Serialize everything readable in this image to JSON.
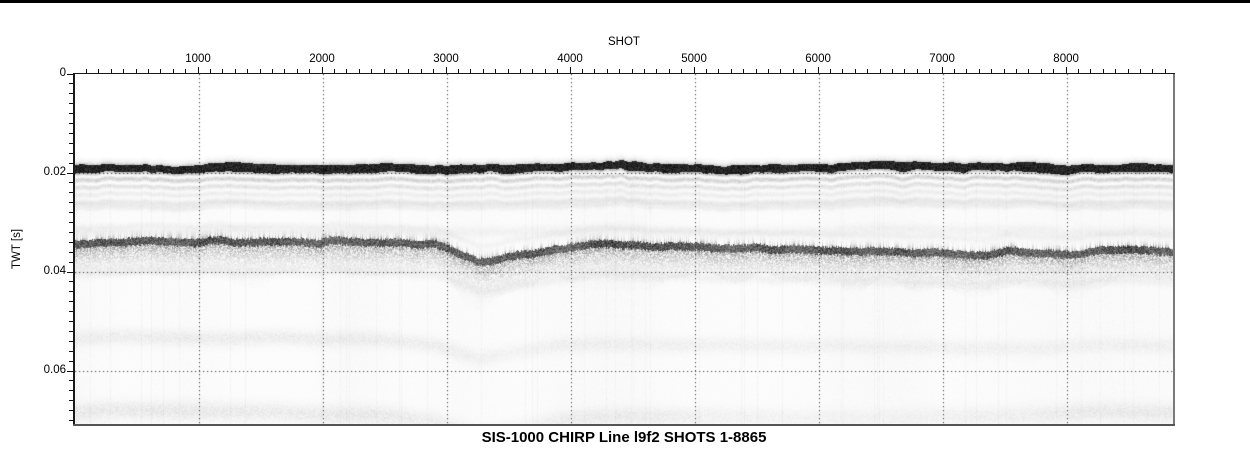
{
  "figure": {
    "kind": "seismic reflection profile plot",
    "top_border": true
  },
  "chart_data": {
    "type": "heatmap",
    "subtype": "seismic_chirp_reflection_profile",
    "title": "SIS-1000 CHIRP Line l9f2 SHOTS 1-8865",
    "xlabel": "SHOT",
    "ylabel": "TWT [s]",
    "xlim": [
      0,
      8870
    ],
    "ylim": [
      0,
      0.0707
    ],
    "y_inverted": true,
    "x_major_ticks": [
      1000,
      2000,
      3000,
      4000,
      5000,
      6000,
      7000,
      8000
    ],
    "x_minor_step": 100,
    "y_major_ticks": [
      0,
      0.02,
      0.04,
      0.06
    ],
    "y_major_tick_labels": [
      "0",
      "0.02",
      "0.04",
      "0.06"
    ],
    "y_minor_step": 0.002,
    "grid": {
      "style": "dotted",
      "color": "#4a4a4a",
      "vertical_at_shots": [
        1000,
        2000,
        3000,
        4000,
        5000,
        6000,
        7000,
        8000
      ],
      "horizontal_at_twt": [
        0.02,
        0.04,
        0.06
      ]
    },
    "palette": {
      "background": "#ffffff",
      "signal": "#000000",
      "axis": "#1a1a1a",
      "right_bottom_border": "#777777"
    },
    "horizons": [
      {
        "name": "seafloor",
        "amplitude": "strong",
        "description": "near-black continuous reflector with fuzzy top edge and ringing reverberation tail below",
        "reverberation_offsets_s": [
          0.0073,
          0.0128
        ],
        "points": [
          [
            0,
            0.0191
          ],
          [
            400,
            0.0189
          ],
          [
            800,
            0.0192
          ],
          [
            1200,
            0.0187
          ],
          [
            1600,
            0.019
          ],
          [
            2000,
            0.0192
          ],
          [
            2400,
            0.0188
          ],
          [
            2800,
            0.019
          ],
          [
            3200,
            0.0193
          ],
          [
            3600,
            0.0191
          ],
          [
            4000,
            0.0187
          ],
          [
            4400,
            0.0184
          ],
          [
            4800,
            0.0189
          ],
          [
            5200,
            0.0191
          ],
          [
            5600,
            0.0189
          ],
          [
            6000,
            0.019
          ],
          [
            6400,
            0.0186
          ],
          [
            6800,
            0.0183
          ],
          [
            7200,
            0.0189
          ],
          [
            7600,
            0.0186
          ],
          [
            8000,
            0.0191
          ],
          [
            8400,
            0.0189
          ],
          [
            8865,
            0.019
          ]
        ]
      },
      {
        "name": "sub-bottom-reflector",
        "amplitude": "strong",
        "description": "spiky dark reflector with speckled tail; dips near shot 3250, shallows at bumps near shots 7500 and 8400",
        "precursor_offset_s": -0.0024,
        "ringing_offset_s": 0.0068,
        "points": [
          [
            0,
            0.0336
          ],
          [
            300,
            0.0332
          ],
          [
            600,
            0.033
          ],
          [
            900,
            0.0332
          ],
          [
            1200,
            0.033
          ],
          [
            1500,
            0.0329
          ],
          [
            1800,
            0.0333
          ],
          [
            2100,
            0.0331
          ],
          [
            2400,
            0.0334
          ],
          [
            2700,
            0.0332
          ],
          [
            2900,
            0.0337
          ],
          [
            3050,
            0.0348
          ],
          [
            3250,
            0.0373
          ],
          [
            3450,
            0.0363
          ],
          [
            3650,
            0.0354
          ],
          [
            3850,
            0.0346
          ],
          [
            4050,
            0.0338
          ],
          [
            4250,
            0.0336
          ],
          [
            4500,
            0.034
          ],
          [
            4800,
            0.0341
          ],
          [
            5100,
            0.0343
          ],
          [
            5400,
            0.0346
          ],
          [
            5700,
            0.0344
          ],
          [
            6000,
            0.0346
          ],
          [
            6300,
            0.0349
          ],
          [
            6600,
            0.0351
          ],
          [
            6900,
            0.0354
          ],
          [
            7150,
            0.0357
          ],
          [
            7350,
            0.0356
          ],
          [
            7500,
            0.0349
          ],
          [
            7700,
            0.0353
          ],
          [
            7900,
            0.0358
          ],
          [
            8100,
            0.0356
          ],
          [
            8300,
            0.0349
          ],
          [
            8500,
            0.0346
          ],
          [
            8700,
            0.0351
          ],
          [
            8865,
            0.0353
          ]
        ]
      },
      {
        "name": "deep-multiple-band-1",
        "amplitude": "faint",
        "description": "patchy light-gray band, mirrors sub-bottom dip near shot 3250",
        "points": [
          [
            0,
            0.0533
          ],
          [
            600,
            0.053
          ],
          [
            1200,
            0.0535
          ],
          [
            1800,
            0.0532
          ],
          [
            2400,
            0.0536
          ],
          [
            2900,
            0.0545
          ],
          [
            3250,
            0.0575
          ],
          [
            3600,
            0.056
          ],
          [
            3900,
            0.0548
          ],
          [
            4200,
            0.0545
          ],
          [
            4800,
            0.0545
          ],
          [
            5400,
            0.0548
          ],
          [
            6000,
            0.0548
          ],
          [
            6600,
            0.055
          ],
          [
            7200,
            0.0552
          ],
          [
            7800,
            0.0553
          ],
          [
            8300,
            0.0545
          ],
          [
            8865,
            0.0548
          ]
        ],
        "intensity_profile": [
          [
            0,
            0.75
          ],
          [
            1000,
            0.8
          ],
          [
            2000,
            0.85
          ],
          [
            3000,
            0.7
          ],
          [
            3500,
            0.5
          ],
          [
            4000,
            0.65
          ],
          [
            5000,
            0.6
          ],
          [
            6000,
            0.55
          ],
          [
            7000,
            0.6
          ],
          [
            8000,
            0.55
          ],
          [
            8865,
            0.6
          ]
        ]
      },
      {
        "name": "deep-multiple-band-2",
        "amplitude": "faint",
        "description": "patchy light-gray band near bottom edge, partly clipped by plot bottom",
        "points": [
          [
            0,
            0.0682
          ],
          [
            600,
            0.0678
          ],
          [
            1200,
            0.0682
          ],
          [
            1800,
            0.0685
          ],
          [
            2400,
            0.0688
          ],
          [
            2900,
            0.07
          ],
          [
            3250,
            0.073
          ],
          [
            3600,
            0.0715
          ],
          [
            3900,
            0.07
          ],
          [
            4200,
            0.0692
          ],
          [
            4800,
            0.069
          ],
          [
            5400,
            0.0692
          ],
          [
            6000,
            0.0695
          ],
          [
            6600,
            0.0693
          ],
          [
            7200,
            0.069
          ],
          [
            7800,
            0.0688
          ],
          [
            8300,
            0.068
          ],
          [
            8865,
            0.0683
          ]
        ],
        "intensity_profile": [
          [
            0,
            0.85
          ],
          [
            800,
            0.9
          ],
          [
            1600,
            0.8
          ],
          [
            2400,
            0.85
          ],
          [
            3100,
            0.6
          ],
          [
            3600,
            0.35
          ],
          [
            4000,
            0.7
          ],
          [
            4600,
            0.75
          ],
          [
            5200,
            0.5
          ],
          [
            5800,
            0.45
          ],
          [
            6400,
            0.4
          ],
          [
            7000,
            0.5
          ],
          [
            7600,
            0.6
          ],
          [
            8200,
            0.8
          ],
          [
            8865,
            0.8
          ]
        ]
      }
    ]
  }
}
